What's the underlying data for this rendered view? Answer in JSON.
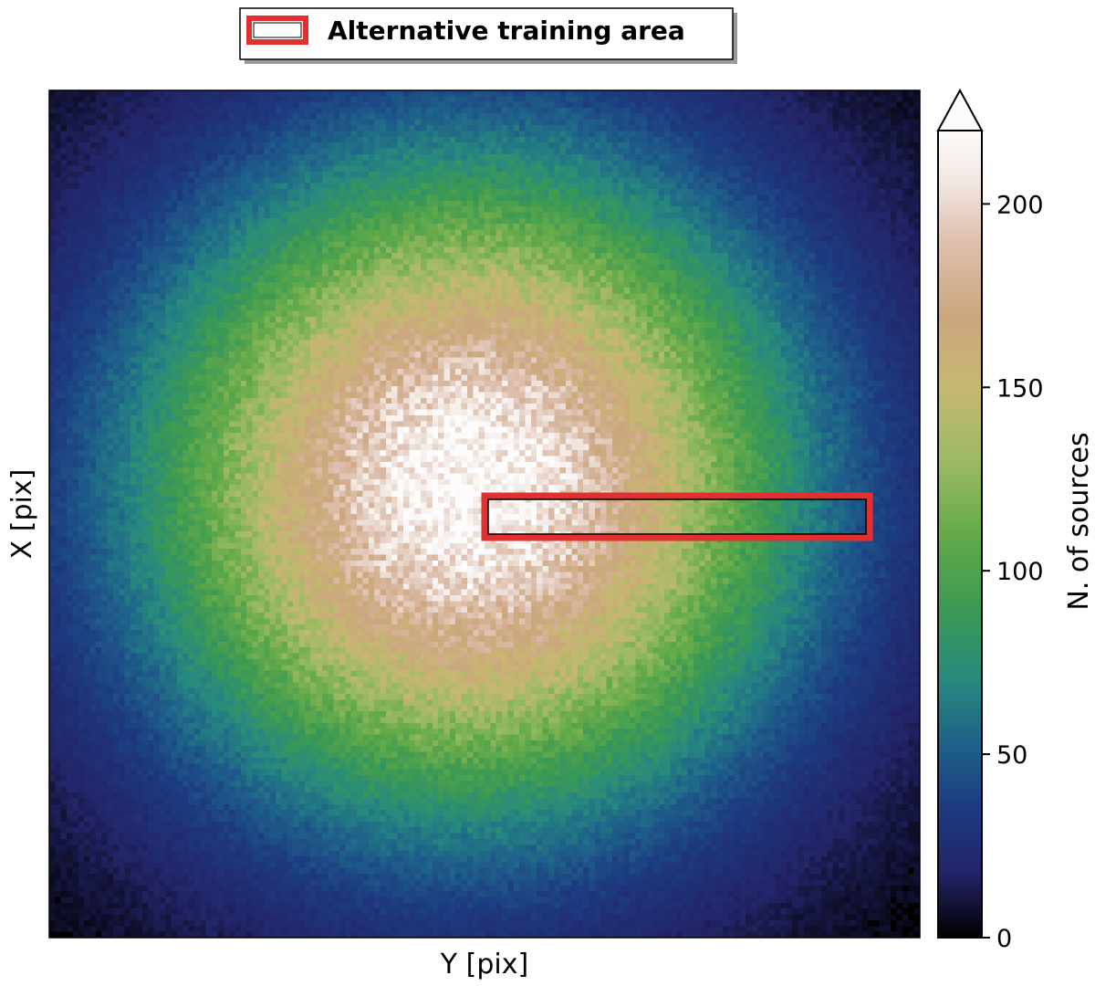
{
  "chart_data": {
    "type": "heatmap",
    "title": "",
    "xlabel": "Y [pix]",
    "ylabel": "X [pix]",
    "x_ticks_shown": false,
    "y_ticks_shown": false,
    "grid": false,
    "colormap": "gist_earth",
    "colorbar": {
      "label": "N. of sources",
      "range": [
        0,
        220
      ],
      "extend": "max",
      "ticks": [
        0,
        50,
        100,
        150,
        200
      ],
      "tick_labels": [
        "0",
        "50",
        "100",
        "150",
        "200"
      ]
    },
    "distribution": {
      "shape": "centered radial",
      "peak_value": 220,
      "background_value": 0
    },
    "legend": {
      "placement": "top-center",
      "entries": [
        {
          "label": "Alternative training area",
          "edge_color": "#e03030",
          "face_color": "#ffffff"
        }
      ]
    },
    "annotations": [
      {
        "type": "rectangle",
        "label": "Alternative training area",
        "edge_color": "#e03030"
      }
    ]
  }
}
